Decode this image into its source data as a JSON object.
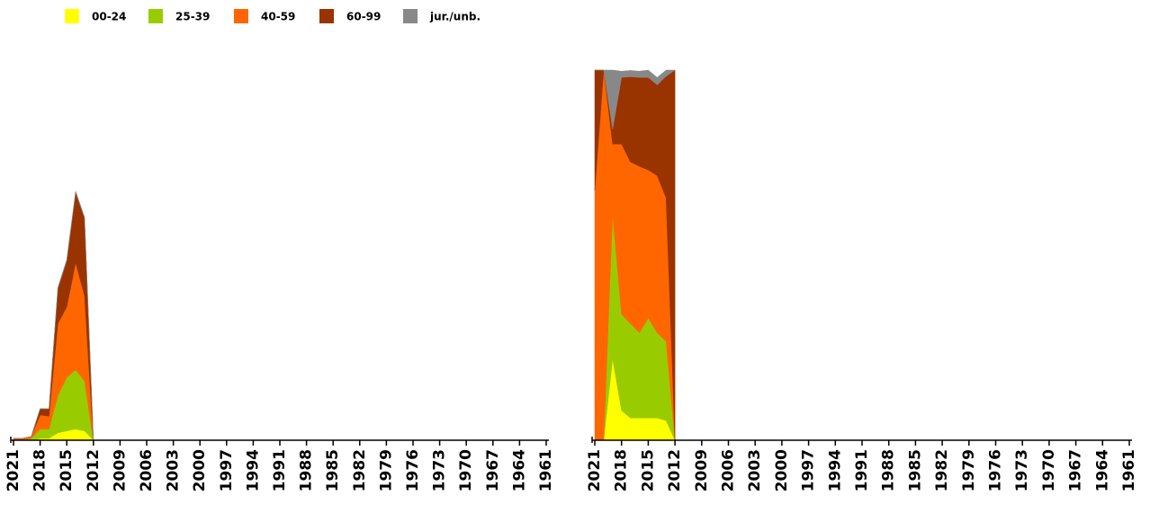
{
  "chart_data": [
    {
      "type": "area",
      "x": [
        2021,
        2020,
        2019,
        2018,
        2017,
        2016,
        2015,
        2014,
        2013,
        2012
      ],
      "series": [
        {
          "name": "00-24",
          "color": "#ffff00",
          "values": [
            0,
            0,
            0,
            0.5,
            0.5,
            2,
            2.5,
            3,
            2.5,
            0
          ]
        },
        {
          "name": "25-39",
          "color": "#99cc00",
          "values": [
            0,
            0,
            0.5,
            2.5,
            2.5,
            10,
            14.5,
            16,
            13.5,
            0
          ]
        },
        {
          "name": "40-59",
          "color": "#ff6600",
          "values": [
            0.5,
            0.5,
            0.5,
            3.8,
            3.5,
            19.5,
            19,
            29,
            23,
            0
          ]
        },
        {
          "name": "60-99",
          "color": "#993300",
          "values": [
            0,
            0,
            0,
            1.7,
            2,
            9.5,
            12.5,
            19,
            21,
            0
          ]
        },
        {
          "name": "jur./unb.",
          "color": "#888888",
          "values": [
            0,
            0,
            0,
            0,
            0,
            0.3,
            0.3,
            0.3,
            0.3,
            0
          ]
        }
      ],
      "xlim": [
        2021,
        1961
      ],
      "ylim": [
        0,
        100
      ],
      "xticks": [
        2021,
        2018,
        2015,
        2012,
        2009,
        2006,
        2003,
        2000,
        1997,
        1994,
        1991,
        1988,
        1985,
        1982,
        1979,
        1976,
        1973,
        1970,
        1967,
        1964,
        1961
      ]
    },
    {
      "type": "area",
      "x": [
        2021,
        2020,
        2019,
        2018,
        2017,
        2016,
        2015,
        2014,
        2013,
        2012
      ],
      "series": [
        {
          "color": "#ffff00",
          "values": [
            0,
            0,
            22,
            8,
            6,
            6,
            6,
            6,
            5.3,
            0
          ]
        },
        {
          "color": "#99cc00",
          "values": [
            0,
            0,
            39,
            26,
            25.5,
            23,
            27,
            23,
            21.4,
            0
          ]
        },
        {
          "color": "#ff6600",
          "values": [
            67.5,
            100,
            19,
            46,
            43.7,
            45,
            40,
            42.5,
            38.8,
            0
          ]
        },
        {
          "color": "#993300",
          "values": [
            32.5,
            0,
            4,
            18,
            23,
            24,
            25,
            24.5,
            32.8,
            100
          ]
        },
        {
          "color": "#888888",
          "values": [
            0,
            0,
            16,
            1.7,
            1.7,
            1.7,
            2,
            2,
            1.7,
            0
          ]
        }
      ],
      "xlim": [
        2021,
        1961
      ],
      "ylim": [
        0,
        100
      ],
      "xticks": [
        2021,
        2018,
        2015,
        2012,
        2009,
        2006,
        2003,
        2000,
        1997,
        1994,
        1991,
        1988,
        1985,
        1982,
        1979,
        1976,
        1973,
        1970,
        1967,
        1964,
        1961
      ]
    }
  ]
}
